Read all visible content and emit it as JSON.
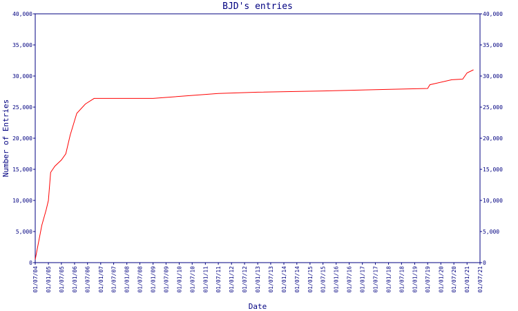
{
  "chart_data": {
    "type": "line",
    "title": "BJD's entries",
    "x_label": "Date",
    "y_label": "Number of Entries",
    "x": [
      "01/07/04",
      "01/10/04",
      "01/12/04",
      "01/01/05",
      "01/02/05",
      "01/04/05",
      "01/07/05",
      "01/09/05",
      "01/11/05",
      "01/02/06",
      "01/06/06",
      "01/10/06",
      "01/01/09",
      "01/07/11",
      "01/01/13",
      "01/07/15",
      "01/07/17",
      "01/07/19",
      "01/08/19",
      "01/06/20",
      "01/11/20",
      "01/01/21",
      "01/04/21"
    ],
    "series": [
      {
        "name": "entries",
        "color": "#ff0000",
        "values": [
          500,
          6000,
          8500,
          10000,
          14500,
          15500,
          16500,
          17500,
          20500,
          24000,
          25500,
          26400,
          26400,
          27200,
          27400,
          27600,
          27800,
          28000,
          28600,
          29400,
          29500,
          30500,
          31000
        ]
      }
    ],
    "xlim": [
      "01/07/04",
      "01/07/21"
    ],
    "xticks": [
      "01/07/04",
      "01/01/05",
      "01/07/05",
      "01/01/06",
      "01/07/06",
      "01/01/07",
      "01/07/07",
      "01/01/08",
      "01/07/08",
      "01/01/09",
      "01/07/09",
      "01/01/10",
      "01/07/10",
      "01/01/11",
      "01/07/11",
      "01/01/12",
      "01/07/12",
      "01/01/13",
      "01/07/13",
      "01/01/14",
      "01/07/14",
      "01/01/15",
      "01/07/15",
      "01/01/16",
      "01/07/16",
      "01/01/17",
      "01/07/17",
      "01/01/18",
      "01/07/18",
      "01/01/19",
      "01/07/19",
      "01/01/20",
      "01/07/20",
      "01/01/21",
      "01/07/21"
    ],
    "ylim": [
      0,
      40000
    ],
    "yticks": [
      0,
      {
        "value": 5000,
        "label": "5,000"
      },
      {
        "value": 10000,
        "label": "10,000"
      },
      {
        "value": 15000,
        "label": "15,000"
      },
      {
        "value": 20000,
        "label": "20,000"
      },
      {
        "value": 25000,
        "label": "25,000"
      },
      {
        "value": 30000,
        "label": "30,000"
      },
      {
        "value": 35000,
        "label": "35,000"
      },
      {
        "value": 40000,
        "label": "40,000"
      }
    ],
    "right_axis": true,
    "grid": false,
    "axis_color": "#000080"
  }
}
